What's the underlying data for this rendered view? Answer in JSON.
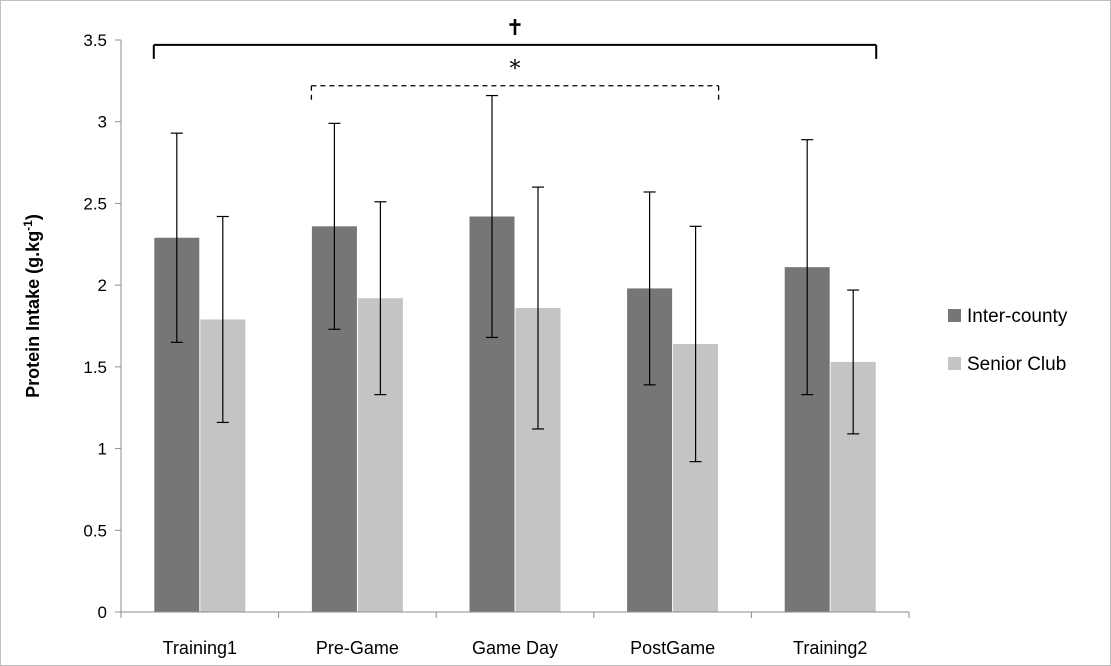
{
  "chart_data": {
    "type": "bar",
    "ylabel": "Protein Intake (g.kg",
    "ylabel_sup": "-1",
    "ylabel_close": ")",
    "ylim": [
      0,
      3.5
    ],
    "yticks": [
      "0",
      "0.5",
      "1",
      "1.5",
      "2",
      "2.5",
      "3",
      "3.5"
    ],
    "categories": [
      "Training1",
      "Pre-Game",
      "Game Day",
      "PostGame",
      "Training2"
    ],
    "series": [
      {
        "name": "Inter-county",
        "color": "#767676",
        "values": [
          2.29,
          2.36,
          2.42,
          1.98,
          2.11
        ],
        "err_low": [
          1.65,
          1.73,
          1.68,
          1.39,
          1.33
        ],
        "err_high": [
          2.93,
          2.99,
          3.16,
          2.57,
          2.89
        ]
      },
      {
        "name": "Senior Club",
        "color": "#c4c4c4",
        "values": [
          1.79,
          1.92,
          1.86,
          1.64,
          1.53
        ],
        "err_low": [
          1.16,
          1.33,
          1.12,
          0.92,
          1.09
        ],
        "err_high": [
          2.42,
          2.51,
          2.6,
          2.36,
          1.97
        ]
      }
    ],
    "legend_position": "right",
    "grid": false,
    "annotations": [
      {
        "symbol": "✝",
        "style": "solid",
        "from_category": 0,
        "to_category": 4,
        "y": 3.47
      },
      {
        "symbol": "*",
        "style": "dashed",
        "from_category": 1,
        "to_category": 3,
        "y": 3.22
      }
    ]
  }
}
